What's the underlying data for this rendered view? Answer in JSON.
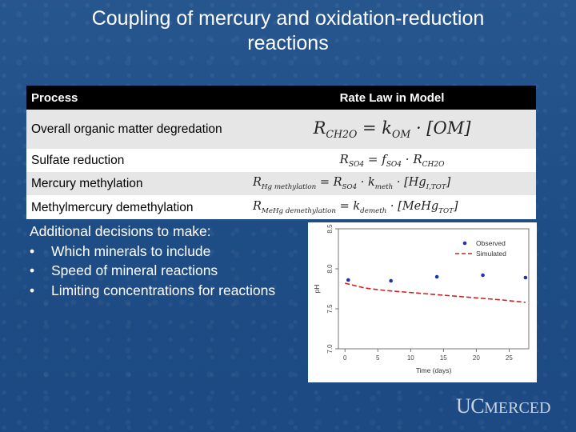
{
  "slide": {
    "title_line1": "Coupling of mercury and oxidation-reduction",
    "title_line2": "reactions"
  },
  "table": {
    "headers": [
      "Process",
      "Rate Law in Model"
    ],
    "rows": [
      {
        "process": "Overall organic matter degredation",
        "rate_law": "R_CH2O = k_OM · [OM]"
      },
      {
        "process": "Sulfate reduction",
        "rate_law": "R_SO4 = f_SO4 · R_CH2O"
      },
      {
        "process": "Mercury methylation",
        "rate_law": "R_Hg methylation = R_SO4 · k_meth · [Hg_I,TOT]"
      },
      {
        "process": "Methylmercury demethylation",
        "rate_law": "R_MeHg demethylation = k_demeth · [MeHg_TOT]"
      }
    ]
  },
  "decisions": {
    "heading": "Additional decisions to make:",
    "bullet": "•",
    "items": [
      "Which minerals to include",
      "Speed of mineral reactions",
      "Limiting concentrations for reactions"
    ]
  },
  "chart_data": {
    "type": "scatter",
    "xlabel": "Time (days)",
    "ylabel": "pH",
    "xlim": [
      -1,
      28
    ],
    "ylim": [
      7.0,
      8.5
    ],
    "x_ticks": [
      0,
      5,
      10,
      15,
      20,
      25
    ],
    "y_ticks": [
      7.0,
      7.5,
      8.0,
      8.5
    ],
    "legend_position": "top-right",
    "grid": false,
    "series": [
      {
        "name": "Observed",
        "style": "points",
        "color": "#2233aa",
        "x": [
          0.5,
          7,
          14,
          21,
          27.5
        ],
        "y": [
          7.86,
          7.85,
          7.9,
          7.92,
          7.89
        ]
      },
      {
        "name": "Simulated",
        "style": "dashed-line",
        "color": "#cc2222",
        "x": [
          0,
          3,
          6,
          9,
          12,
          15,
          18,
          21,
          24,
          27.5
        ],
        "y": [
          7.82,
          7.76,
          7.73,
          7.71,
          7.69,
          7.67,
          7.65,
          7.63,
          7.61,
          7.58
        ]
      }
    ]
  },
  "logo": {
    "uc": "UC",
    "merced": "MERCED"
  },
  "colors": {
    "background": "#1f4e86",
    "header_row": "#000000",
    "row_shade": "#e6e6e6"
  }
}
